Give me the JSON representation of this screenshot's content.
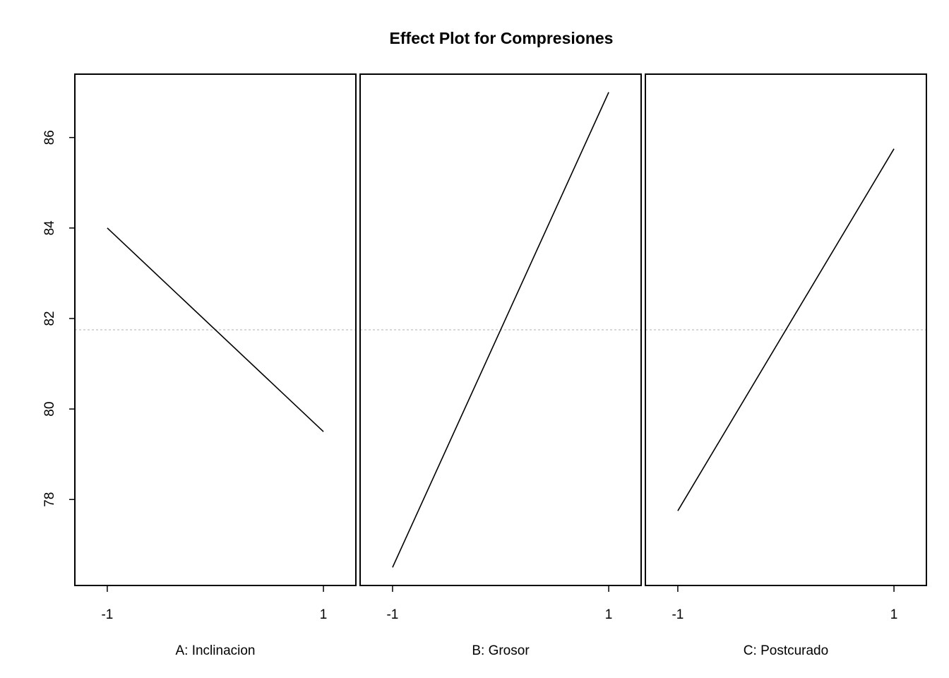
{
  "chart_data": {
    "type": "line",
    "title": "Effect Plot for Compresiones",
    "ylabel": "",
    "ylim": [
      76.1,
      87.4
    ],
    "yticks": [
      78,
      80,
      82,
      84,
      86
    ],
    "xlim": [
      -1.3,
      1.3
    ],
    "xticks": [
      -1,
      1
    ],
    "grand_mean": 81.75,
    "grid": false,
    "panels": [
      {
        "xlabel": "A: Inclinacion",
        "x": [
          -1,
          1
        ],
        "y": [
          84.0,
          79.5
        ]
      },
      {
        "xlabel": "B: Grosor",
        "x": [
          -1,
          1
        ],
        "y": [
          76.5,
          87.0
        ]
      },
      {
        "xlabel": "C: Postcurado",
        "x": [
          -1,
          1
        ],
        "y": [
          77.75,
          85.75
        ]
      }
    ],
    "colors": {
      "line": "#000000",
      "mean_line": "#cccccc",
      "frame": "#000000"
    }
  }
}
